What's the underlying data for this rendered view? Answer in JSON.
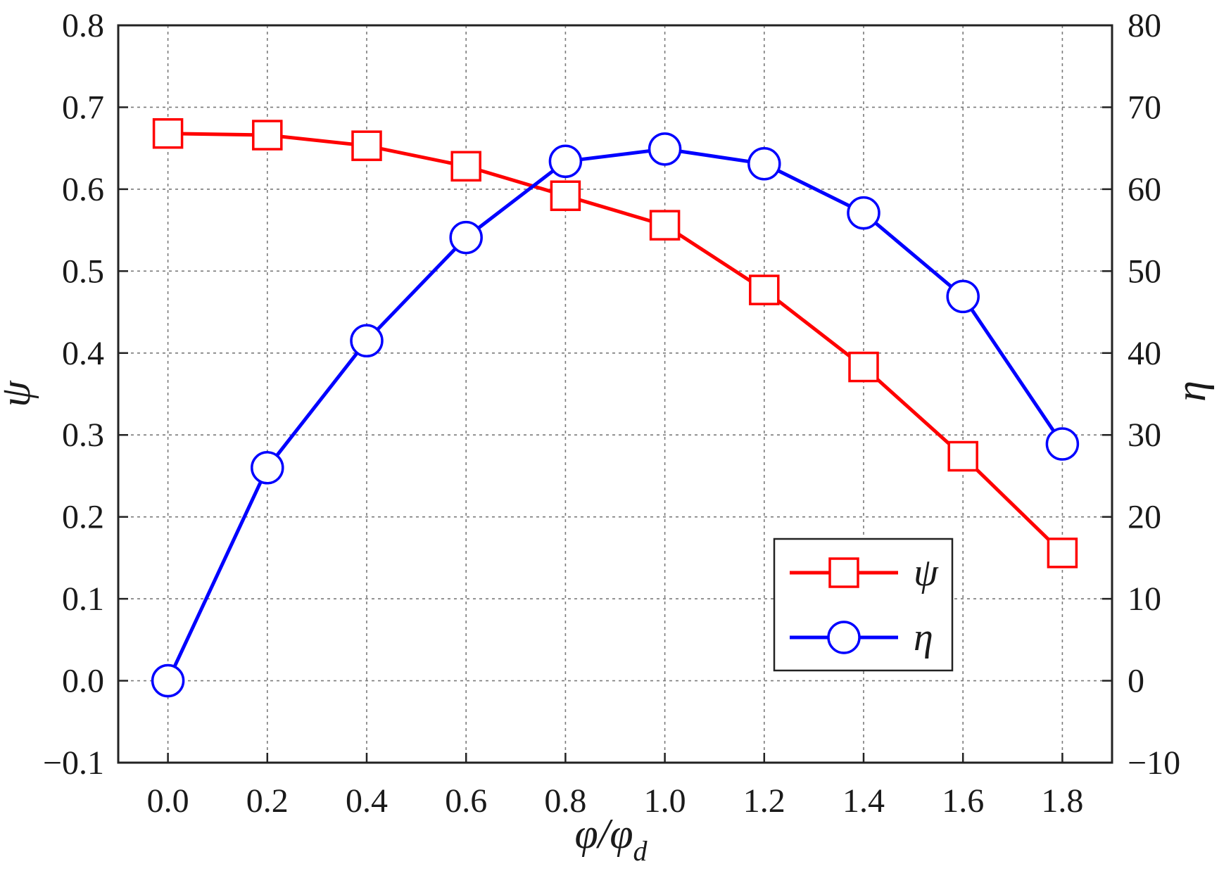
{
  "chart_data": {
    "type": "line",
    "xlabel": "φ/φ",
    "xlabel_subscript": "d",
    "ylabel_left": "ψ",
    "ylabel_right": "η",
    "x": [
      0.0,
      0.2,
      0.4,
      0.6,
      0.8,
      1.0,
      1.2,
      1.4,
      1.6,
      1.8
    ],
    "xticks": [
      "0.0",
      "0.2",
      "0.4",
      "0.6",
      "0.8",
      "1.0",
      "1.2",
      "1.4",
      "1.6",
      "1.8"
    ],
    "xlim": [
      -0.1,
      1.9
    ],
    "ylim_left": [
      -0.1,
      0.8
    ],
    "ylim_right": [
      -10,
      80
    ],
    "yticks_left": [
      "−0.1",
      "0.0",
      "0.1",
      "0.2",
      "0.3",
      "0.4",
      "0.5",
      "0.6",
      "0.7",
      "0.8"
    ],
    "yticks_right": [
      "−10",
      "0",
      "10",
      "20",
      "30",
      "40",
      "50",
      "60",
      "70",
      "80"
    ],
    "grid": true,
    "legend_position": "bottom-right",
    "series": [
      {
        "name": "ψ",
        "axis": "left",
        "color": "#ff0000",
        "marker": "square",
        "values": [
          0.668,
          0.666,
          0.653,
          0.628,
          0.592,
          0.556,
          0.477,
          0.383,
          0.274,
          0.156
        ]
      },
      {
        "name": "η",
        "axis": "right",
        "color": "#0000ff",
        "marker": "circle",
        "values": [
          0.0,
          26.0,
          41.5,
          54.1,
          63.4,
          64.9,
          63.1,
          57.1,
          46.9,
          28.9
        ]
      }
    ]
  }
}
